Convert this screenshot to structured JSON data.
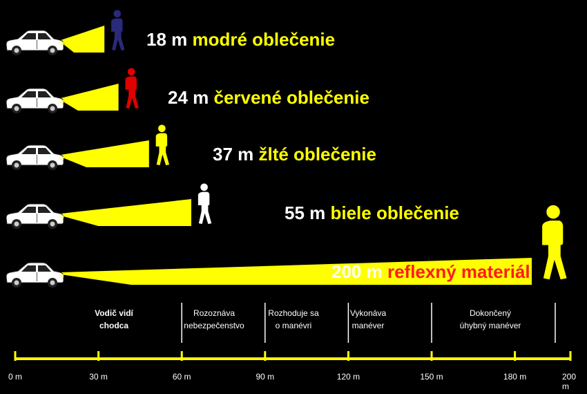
{
  "colors": {
    "beam": "#ffff00",
    "accent": "#ffff00",
    "highlight": "#ff1a1a",
    "background": "#000000",
    "text": "#ffffff"
  },
  "rows": [
    {
      "distance": 18,
      "distance_label": "18 m",
      "description": "modré oblečenie",
      "figure_color": "#2a2a7a",
      "text_color": "#ffff00"
    },
    {
      "distance": 24,
      "distance_label": "24 m",
      "description": "červené oblečenie",
      "figure_color": "#e00000",
      "text_color": "#ffff00"
    },
    {
      "distance": 37,
      "distance_label": "37 m",
      "description": "žlté oblečenie",
      "figure_color": "#ffff00",
      "text_color": "#ffff00"
    },
    {
      "distance": 55,
      "distance_label": "55 m",
      "description": "biele oblečenie",
      "figure_color": "#ffffff",
      "text_color": "#ffff00"
    },
    {
      "distance": 200,
      "distance_label": "200 m",
      "description": "reflexný materiál",
      "figure_color": "#ffff00",
      "text_color": "#ff1a1a"
    }
  ],
  "phases": [
    {
      "lines": [
        "Vodič vidí",
        "chodca"
      ]
    },
    {
      "lines": [
        "Rozoznáva",
        "nebezpečenstvo"
      ]
    },
    {
      "lines": [
        "Rozhoduje sa",
        "o manévri"
      ]
    },
    {
      "lines": [
        "Vykonáva",
        "manéver"
      ]
    },
    {
      "lines": [
        "Dokončený",
        "úhybný manéver"
      ]
    }
  ],
  "phase_boundaries_m": [
    0,
    60,
    90,
    120,
    150,
    200
  ],
  "axis": {
    "ticks": [
      0,
      30,
      60,
      90,
      120,
      150,
      180,
      200
    ],
    "tick_labels": [
      "0 m",
      "30 m",
      "60 m",
      "90 m",
      "120 m",
      "150 m",
      "180 m",
      "200 m"
    ]
  }
}
